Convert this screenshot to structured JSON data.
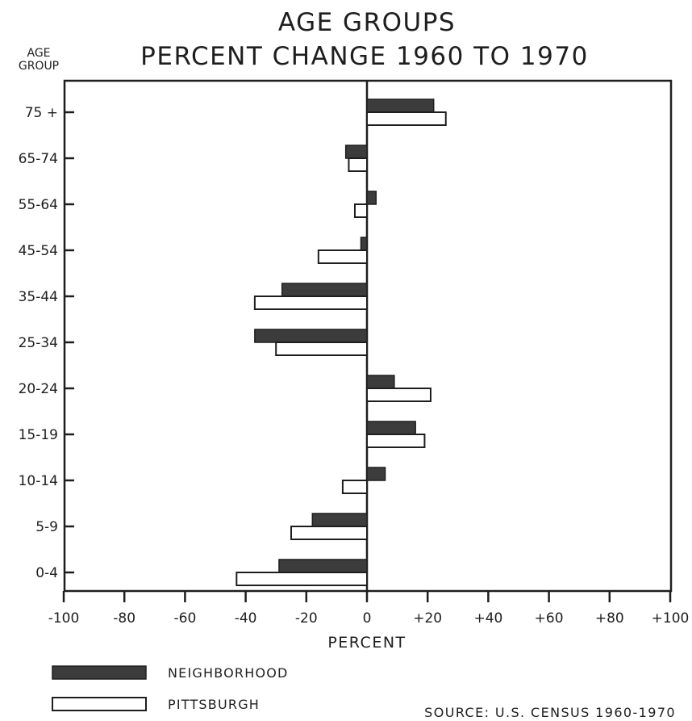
{
  "chart_data": {
    "type": "bar",
    "orientation": "horizontal",
    "title": "AGE GROUPS",
    "subtitle": "PERCENT CHANGE 1960 TO 1970",
    "ylabel_line1": "AGE",
    "ylabel_line2": "GROUP",
    "xlabel": "PERCENT",
    "xlim": [
      -100,
      100
    ],
    "xticks": [
      -100,
      -80,
      -60,
      -40,
      -20,
      0,
      20,
      40,
      60,
      80,
      100
    ],
    "xtick_labels": [
      "-100",
      "-80",
      "-60",
      "-40",
      "-20",
      "0",
      "+20",
      "+40",
      "+60",
      "+80",
      "+100"
    ],
    "categories": [
      "75 +",
      "65-74",
      "55-64",
      "45-54",
      "35-44",
      "25-34",
      "20-24",
      "15-19",
      "10-14",
      "5-9",
      "0-4"
    ],
    "series": [
      {
        "name": "NEIGHBORHOOD",
        "color": "#3c3c3c",
        "fill": "solid",
        "values": [
          22,
          -7,
          3,
          -2,
          -28,
          -37,
          9,
          16,
          6,
          -18,
          -29
        ]
      },
      {
        "name": "PITTSBURGH",
        "color": "#ffffff",
        "fill": "outline",
        "values": [
          26,
          -6,
          -4,
          -16,
          -37,
          -30,
          21,
          19,
          -8,
          -25,
          -43
        ]
      }
    ],
    "grid": false,
    "legend_position": "bottom-left",
    "source": "SOURCE: U.S. CENSUS 1960-1970"
  }
}
